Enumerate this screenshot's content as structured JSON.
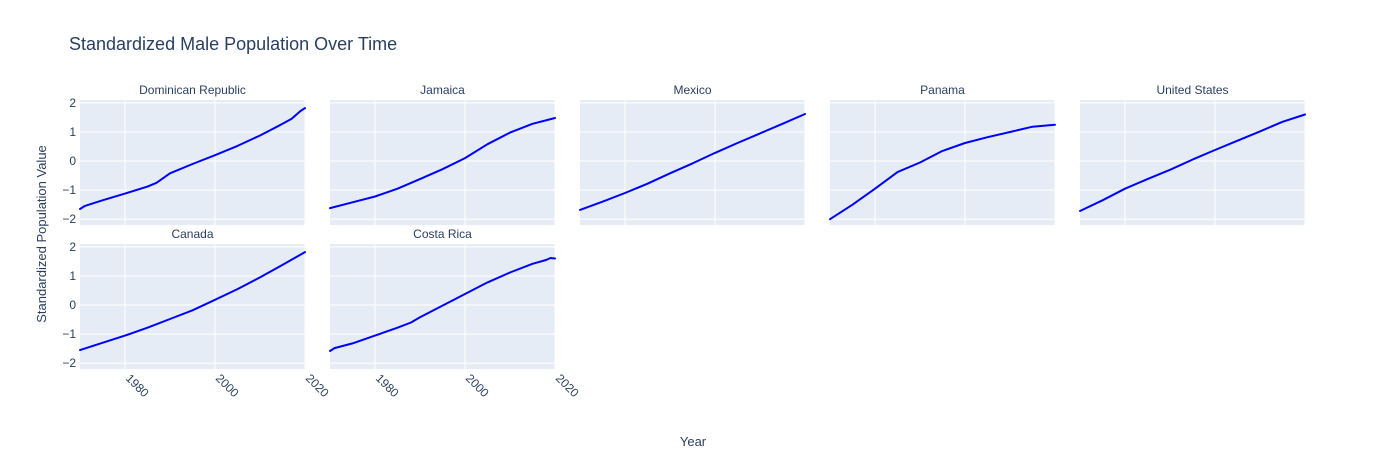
{
  "chart_data": {
    "type": "line",
    "title": "Standardized Male Population Over Time",
    "xlabel": "Year",
    "ylabel": "Standardized Population Value",
    "xlim": [
      1970,
      2020
    ],
    "ylim": [
      -2.2,
      2.1
    ],
    "x_ticks": [
      1980,
      2000,
      2020
    ],
    "y_ticks": [
      -2,
      -1,
      0,
      1,
      2
    ],
    "grid": true,
    "line_color": "#0000ff",
    "panel_background": "#e5ecf6",
    "facets": [
      {
        "name": "Dominican Republic",
        "x": [
          1970,
          1971,
          1975,
          1980,
          1985,
          1987,
          1990,
          1995,
          2000,
          2005,
          2010,
          2014,
          2015,
          2017,
          2019,
          2020
        ],
        "y": [
          -1.65,
          -1.55,
          -1.35,
          -1.12,
          -0.88,
          -0.75,
          -0.42,
          -0.1,
          0.2,
          0.52,
          0.88,
          1.2,
          1.28,
          1.45,
          1.72,
          1.82
        ]
      },
      {
        "name": "Jamaica",
        "x": [
          1970,
          1975,
          1980,
          1985,
          1990,
          1995,
          2000,
          2005,
          2010,
          2015,
          2020
        ],
        "y": [
          -1.62,
          -1.42,
          -1.22,
          -0.95,
          -0.62,
          -0.28,
          0.1,
          0.58,
          0.98,
          1.28,
          1.48
        ]
      },
      {
        "name": "Mexico",
        "x": [
          1970,
          1975,
          1980,
          1985,
          1990,
          1995,
          2000,
          2005,
          2010,
          2015,
          2020
        ],
        "y": [
          -1.68,
          -1.4,
          -1.1,
          -0.78,
          -0.42,
          -0.08,
          0.28,
          0.62,
          0.95,
          1.28,
          1.62
        ]
      },
      {
        "name": "Panama",
        "x": [
          1970,
          1975,
          1980,
          1985,
          1990,
          1995,
          2000,
          2005,
          2010,
          2015,
          2020
        ],
        "y": [
          -2.0,
          -1.5,
          -0.95,
          -0.38,
          -0.05,
          0.35,
          0.62,
          0.82,
          1.0,
          1.18,
          1.25
        ]
      },
      {
        "name": "United States",
        "x": [
          1970,
          1975,
          1980,
          1985,
          1990,
          1995,
          2000,
          2005,
          2010,
          2015,
          2020
        ],
        "y": [
          -1.72,
          -1.35,
          -0.95,
          -0.62,
          -0.3,
          0.05,
          0.38,
          0.7,
          1.02,
          1.35,
          1.6
        ]
      },
      {
        "name": "Canada",
        "x": [
          1970,
          1975,
          1980,
          1985,
          1990,
          1995,
          2000,
          2005,
          2010,
          2015,
          2020
        ],
        "y": [
          -1.55,
          -1.3,
          -1.05,
          -0.78,
          -0.48,
          -0.18,
          0.18,
          0.55,
          0.95,
          1.38,
          1.82
        ]
      },
      {
        "name": "Costa Rica",
        "x": [
          1970,
          1971,
          1975,
          1980,
          1985,
          1988,
          1990,
          1995,
          2000,
          2005,
          2010,
          2015,
          2018,
          2019,
          2020
        ],
        "y": [
          -1.58,
          -1.48,
          -1.32,
          -1.05,
          -0.78,
          -0.6,
          -0.42,
          -0.02,
          0.38,
          0.78,
          1.12,
          1.42,
          1.55,
          1.62,
          1.6
        ]
      }
    ]
  }
}
